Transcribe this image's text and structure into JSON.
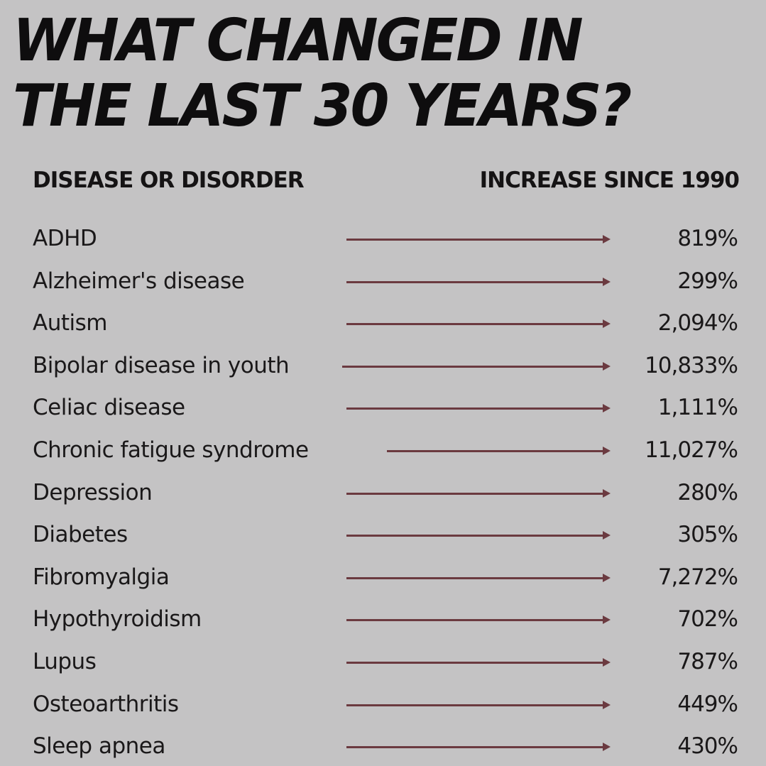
{
  "title": {
    "line1": "WHAT CHANGED IN",
    "line2": "THE LAST 30 YEARS?"
  },
  "columns": {
    "left": "DISEASE OR DISORDER",
    "right": "INCREASE SINCE 1990"
  },
  "rows": [
    {
      "name": "ADHD",
      "value": "819%"
    },
    {
      "name": "Alzheimer's disease",
      "value": "299%"
    },
    {
      "name": "Autism",
      "value": "2,094%"
    },
    {
      "name": "Bipolar disease in youth",
      "value": "10,833%"
    },
    {
      "name": "Celiac disease",
      "value": "1,111%"
    },
    {
      "name": "Chronic fatigue syndrome",
      "value": "11,027%"
    },
    {
      "name": "Depression",
      "value": "280%"
    },
    {
      "name": "Diabetes",
      "value": "305%"
    },
    {
      "name": "Fibromyalgia",
      "value": "7,272%"
    },
    {
      "name": "Hypothyroidism",
      "value": "702%"
    },
    {
      "name": "Lupus",
      "value": "787%"
    },
    {
      "name": "Osteoarthritis",
      "value": "449%"
    },
    {
      "name": "Sleep apnea",
      "value": "430%"
    }
  ],
  "colors": {
    "background": "#c4c3c4",
    "text": "#171516",
    "arrow": "#6b3a40"
  }
}
